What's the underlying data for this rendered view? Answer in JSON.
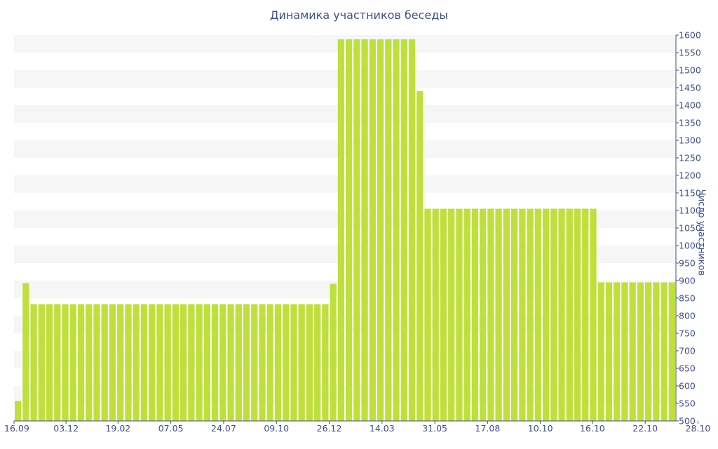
{
  "chart_data": {
    "type": "bar",
    "title": "Динамика участников беседы",
    "xlabel": "",
    "ylabel": "Число участников",
    "ylim": [
      500,
      1600
    ],
    "y_ticks": [
      500,
      550,
      600,
      650,
      700,
      750,
      800,
      850,
      900,
      950,
      1000,
      1050,
      1100,
      1150,
      1200,
      1250,
      1300,
      1350,
      1400,
      1450,
      1500,
      1550,
      1600
    ],
    "x_tick_labels": [
      "16.09",
      "03.12",
      "19.02",
      "07.05",
      "24.07",
      "09.10",
      "26.12",
      "14.03",
      "31.05",
      "17.08",
      "10.10",
      "16.10",
      "22.10",
      "28.10"
    ],
    "x_tick_positions": [
      0,
      6.6,
      13.2,
      19.9,
      26.6,
      33.3,
      40.0,
      46.7,
      53.4,
      60.1,
      66.8,
      73.4,
      80.1,
      86.8
    ],
    "bar_color": "#bfe03b",
    "grid_band_color": "#f6f6f6",
    "values": [
      557,
      893,
      833,
      833,
      833,
      833,
      833,
      833,
      833,
      833,
      833,
      833,
      833,
      833,
      833,
      833,
      833,
      833,
      833,
      833,
      833,
      833,
      833,
      833,
      833,
      833,
      833,
      833,
      833,
      833,
      833,
      833,
      833,
      833,
      833,
      833,
      833,
      833,
      833,
      833,
      891,
      1588,
      1588,
      1588,
      1588,
      1588,
      1588,
      1588,
      1588,
      1588,
      1588,
      1440,
      1105,
      1105,
      1105,
      1105,
      1105,
      1105,
      1105,
      1105,
      1105,
      1105,
      1105,
      1105,
      1105,
      1105,
      1105,
      1105,
      1105,
      1105,
      1105,
      1105,
      1105,
      1105,
      895,
      895,
      895,
      895,
      895,
      895,
      895,
      895,
      895,
      895
    ]
  }
}
